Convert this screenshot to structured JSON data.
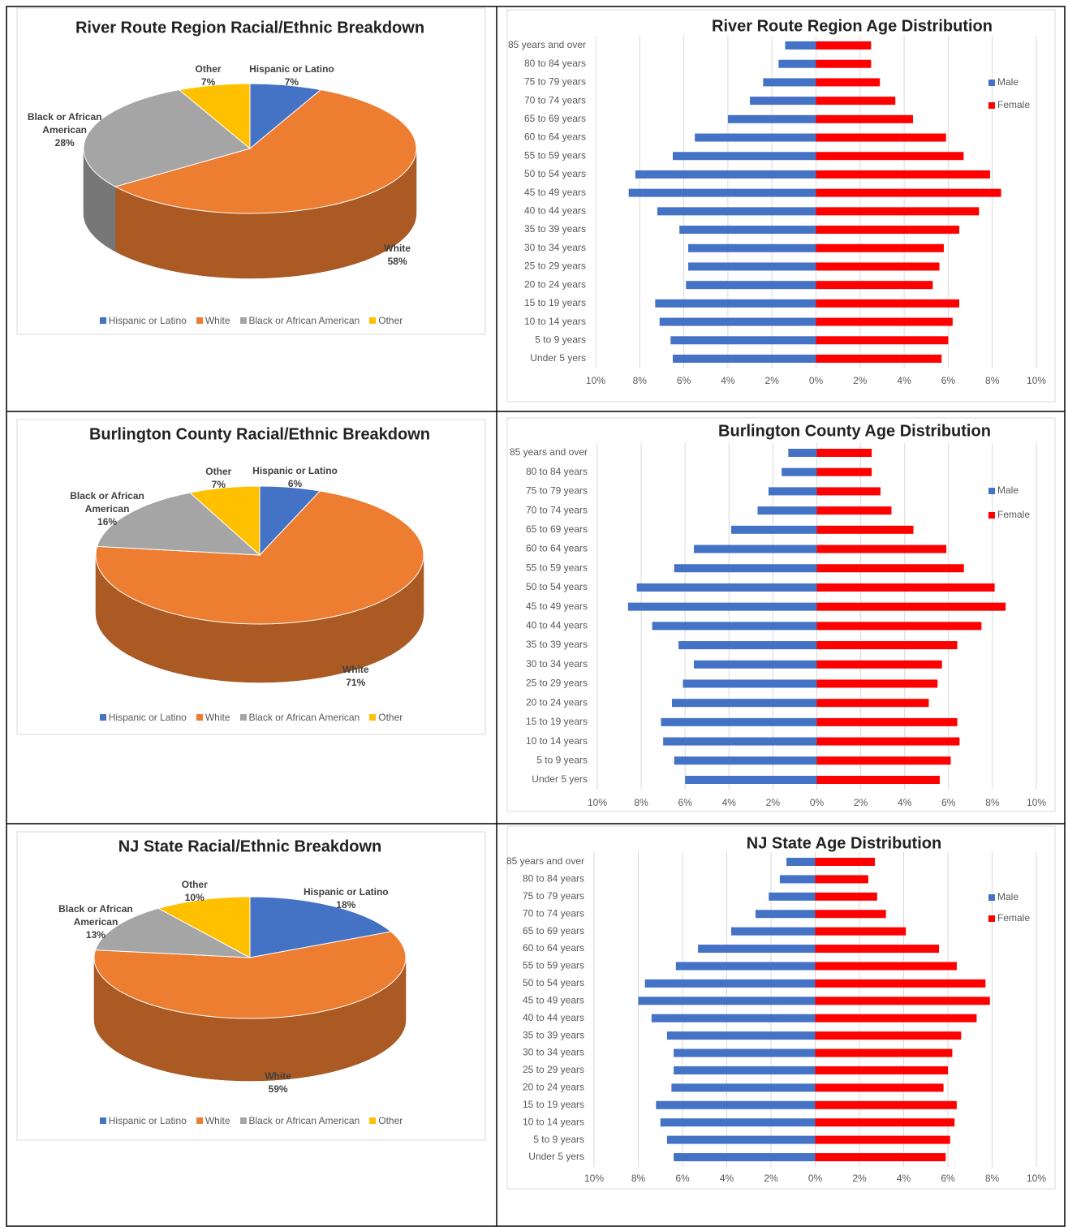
{
  "chart_data": [
    {
      "type": "pie",
      "title": "River Route Region Racial/Ethnic Breakdown",
      "categories": [
        "Hispanic or Latino",
        "White",
        "Black or African American",
        "Other"
      ],
      "values": [
        7,
        58,
        28,
        7
      ],
      "value_labels": [
        "7%",
        "58%",
        "28%",
        "7%"
      ],
      "colors": [
        "#4472c4",
        "#ed7d31",
        "#a5a5a5",
        "#ffc000"
      ],
      "legend": "bottom"
    },
    {
      "type": "bar",
      "orientation": "horizontal",
      "title": "River Route Region Age Distribution",
      "categories": [
        "85 years and over",
        "80 to 84 years",
        "75 to 79 years",
        "70 to 74 years",
        "65 to 69 years",
        "60 to 64 years",
        "55 to 59 years",
        "50 to 54 years",
        "45 to 49 years",
        "40 to 44 years",
        "35 to 39 years",
        "30 to 34 years",
        "25 to 29 years",
        "20 to 24 years",
        "15 to 19 years",
        "10 to 14 years",
        "5 to 9 years",
        "Under 5 yers"
      ],
      "series": [
        {
          "name": "Male",
          "color": "#4472c4",
          "values": [
            -1.4,
            -1.7,
            -2.4,
            -3.0,
            -4.0,
            -5.5,
            -6.5,
            -8.2,
            -8.5,
            -7.2,
            -6.2,
            -5.8,
            -5.8,
            -5.9,
            -7.3,
            -7.1,
            -6.6,
            -6.5
          ]
        },
        {
          "name": "Female",
          "color": "#ff0000",
          "values": [
            2.5,
            2.5,
            2.9,
            3.6,
            4.4,
            5.9,
            6.7,
            7.9,
            8.4,
            7.4,
            6.5,
            5.8,
            5.6,
            5.3,
            6.5,
            6.2,
            6.0,
            5.7
          ]
        }
      ],
      "xlim": [
        -10,
        10
      ],
      "xticks": [
        {
          "value": -10,
          "label": "10%"
        },
        {
          "value": -8,
          "label": "8%"
        },
        {
          "value": -6,
          "label": "6%"
        },
        {
          "value": -4,
          "label": "4%"
        },
        {
          "value": -2,
          "label": "2%"
        },
        {
          "value": 0,
          "label": "0%"
        },
        {
          "value": 2,
          "label": "2%"
        },
        {
          "value": 4,
          "label": "4%"
        },
        {
          "value": 6,
          "label": "6%"
        },
        {
          "value": 8,
          "label": "8%"
        },
        {
          "value": 10,
          "label": "10%"
        }
      ],
      "grid": true,
      "legend": "right"
    },
    {
      "type": "pie",
      "title": "Burlington County Racial/Ethnic Breakdown",
      "categories": [
        "Hispanic or Latino",
        "White",
        "Black or African American",
        "Other"
      ],
      "values": [
        6,
        71,
        16,
        7
      ],
      "value_labels": [
        "6%",
        "71%",
        "16%",
        "7%"
      ],
      "colors": [
        "#4472c4",
        "#ed7d31",
        "#a5a5a5",
        "#ffc000"
      ],
      "legend": "bottom"
    },
    {
      "type": "bar",
      "orientation": "horizontal",
      "title": "Burlington County Age Distribution",
      "categories": [
        "85 years and over",
        "80 to 84 years",
        "75 to 79 years",
        "70 to 74 years",
        "65 to 69 years",
        "60 to 64 years",
        "55 to 59 years",
        "50 to 54 years",
        "45 to 49 years",
        "40 to 44 years",
        "35 to 39 years",
        "30 to 34 years",
        "25 to 29 years",
        "20 to 24 years",
        "15 to 19 years",
        "10 to 14 years",
        "5 to 9 years",
        "Under 5 yers"
      ],
      "series": [
        {
          "name": "Male",
          "color": "#4472c4",
          "values": [
            -1.3,
            -1.6,
            -2.2,
            -2.7,
            -3.9,
            -5.6,
            -6.5,
            -8.2,
            -8.6,
            -7.5,
            -6.3,
            -5.6,
            -6.1,
            -6.6,
            -7.1,
            -7.0,
            -6.5,
            -6.0
          ]
        },
        {
          "name": "Female",
          "color": "#ff0000",
          "values": [
            2.5,
            2.5,
            2.9,
            3.4,
            4.4,
            5.9,
            6.7,
            8.1,
            8.6,
            7.5,
            6.4,
            5.7,
            5.5,
            5.1,
            6.4,
            6.5,
            6.1,
            5.6
          ]
        }
      ],
      "xlim": [
        -10,
        10
      ],
      "xticks": [
        {
          "value": -10,
          "label": "10%"
        },
        {
          "value": -8,
          "label": "8%"
        },
        {
          "value": -6,
          "label": "6%"
        },
        {
          "value": -4,
          "label": "4%"
        },
        {
          "value": -2,
          "label": "2%"
        },
        {
          "value": 0,
          "label": "0%"
        },
        {
          "value": 2,
          "label": "2%"
        },
        {
          "value": 4,
          "label": "4%"
        },
        {
          "value": 6,
          "label": "6%"
        },
        {
          "value": 8,
          "label": "8%"
        },
        {
          "value": 10,
          "label": "10%"
        }
      ],
      "grid": true,
      "legend": "right"
    },
    {
      "type": "pie",
      "title": "NJ State Racial/Ethnic Breakdown",
      "categories": [
        "Hispanic or Latino",
        "White",
        "Black or African American",
        "Other"
      ],
      "values": [
        18,
        59,
        13,
        10
      ],
      "value_labels": [
        "18%",
        "59%",
        "13%",
        "10%"
      ],
      "colors": [
        "#4472c4",
        "#ed7d31",
        "#a5a5a5",
        "#ffc000"
      ],
      "legend": "bottom"
    },
    {
      "type": "bar",
      "orientation": "horizontal",
      "title": "NJ State Age Distribution",
      "categories": [
        "85 years and over",
        "80 to 84 years",
        "75 to 79 years",
        "70 to 74 years",
        "65 to 69 years",
        "60 to 64 years",
        "55 to 59 years",
        "50 to 54 years",
        "45 to 49 years",
        "40 to 44 years",
        "35 to 39 years",
        "30 to 34 years",
        "25 to 29 years",
        "20 to 24 years",
        "15 to 19 years",
        "10 to 14 years",
        "5 to 9 years",
        "Under 5 yers"
      ],
      "series": [
        {
          "name": "Male",
          "color": "#4472c4",
          "values": [
            -1.3,
            -1.6,
            -2.1,
            -2.7,
            -3.8,
            -5.3,
            -6.3,
            -7.7,
            -8.0,
            -7.4,
            -6.7,
            -6.4,
            -6.4,
            -6.5,
            -7.2,
            -7.0,
            -6.7,
            -6.4
          ]
        },
        {
          "name": "Female",
          "color": "#ff0000",
          "values": [
            2.7,
            2.4,
            2.8,
            3.2,
            4.1,
            5.6,
            6.4,
            7.7,
            7.9,
            7.3,
            6.6,
            6.2,
            6.0,
            5.8,
            6.4,
            6.3,
            6.1,
            5.9
          ]
        }
      ],
      "xlim": [
        -10,
        10
      ],
      "xticks": [
        {
          "value": -10,
          "label": "10%"
        },
        {
          "value": -8,
          "label": "8%"
        },
        {
          "value": -6,
          "label": "6%"
        },
        {
          "value": -4,
          "label": "4%"
        },
        {
          "value": -2,
          "label": "2%"
        },
        {
          "value": 0,
          "label": "0%"
        },
        {
          "value": 2,
          "label": "2%"
        },
        {
          "value": 4,
          "label": "4%"
        },
        {
          "value": 6,
          "label": "6%"
        },
        {
          "value": 8,
          "label": "8%"
        },
        {
          "value": 10,
          "label": "10%"
        }
      ],
      "grid": true,
      "legend": "right"
    }
  ]
}
